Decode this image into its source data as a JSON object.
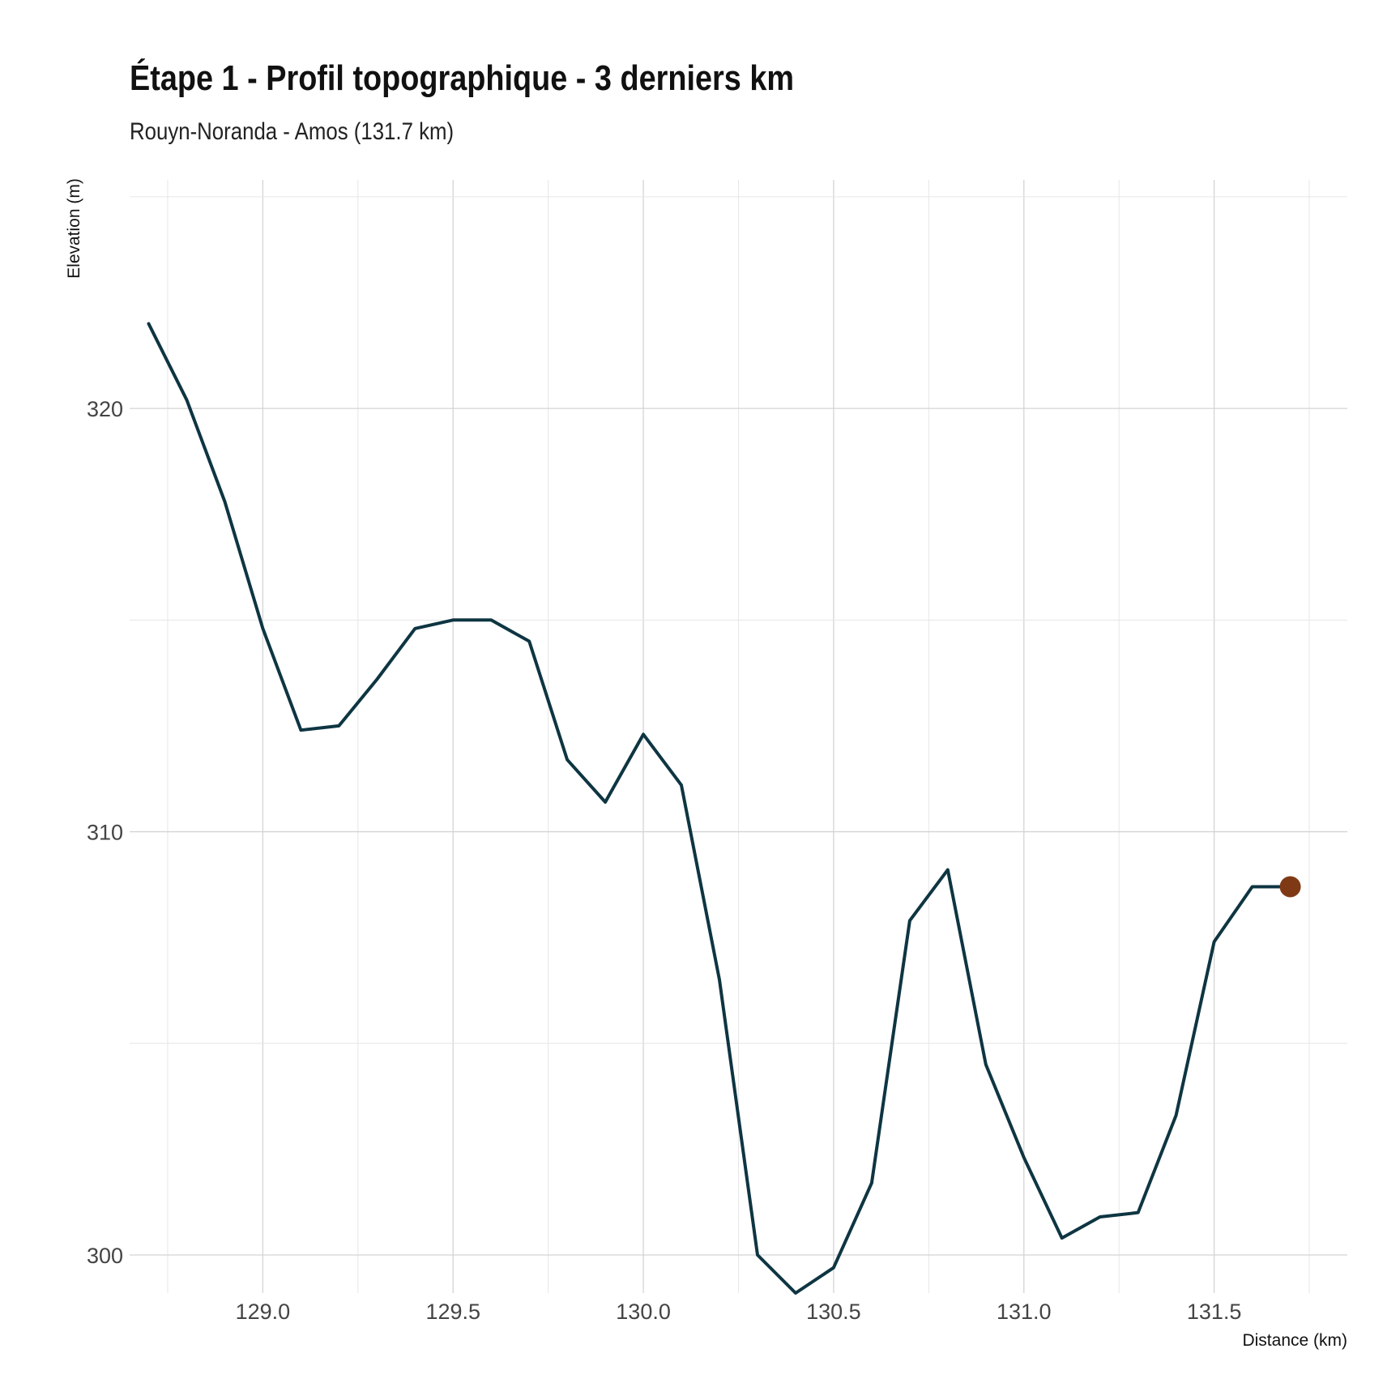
{
  "chart_data": {
    "type": "line",
    "title": "Étape 1 - Profil topographique - 3 derniers km",
    "subtitle": "Rouyn-Noranda - Amos (131.7 km)",
    "xlabel": "Distance (km)",
    "ylabel": "Elevation (m)",
    "xlim": [
      128.65,
      131.85
    ],
    "ylim": [
      299.1,
      325.4
    ],
    "x_ticks": [
      129.0,
      129.5,
      130.0,
      130.5,
      131.0,
      131.5
    ],
    "x_tick_labels": [
      "129.0",
      "129.5",
      "130.0",
      "130.5",
      "131.0",
      "131.5"
    ],
    "y_ticks": [
      300,
      310,
      320
    ],
    "y_tick_labels": [
      "300",
      "310",
      "320"
    ],
    "grid": true,
    "legend": "none",
    "colors": {
      "line": "#0e3542",
      "endpoint": "#7f3a15"
    },
    "series": [
      {
        "x": [
          128.7,
          128.8,
          128.9,
          129.0,
          129.1,
          129.2,
          129.3,
          129.4,
          129.5,
          129.6,
          129.7,
          129.8,
          129.9,
          130.0,
          130.1,
          130.2,
          130.3,
          130.4,
          130.5,
          130.6,
          130.7,
          130.8,
          130.9,
          131.0,
          131.1,
          131.2,
          131.3,
          131.4,
          131.5,
          131.6,
          131.7
        ],
        "y": [
          322.0,
          320.2,
          317.8,
          314.8,
          312.4,
          312.5,
          313.6,
          314.8,
          315.0,
          315.0,
          314.5,
          311.7,
          310.7,
          312.3,
          311.1,
          306.5,
          300.0,
          299.1,
          299.7,
          301.7,
          307.9,
          309.1,
          304.5,
          302.3,
          300.4,
          300.9,
          301.0,
          303.3,
          307.4,
          308.7,
          308.7
        ]
      }
    ],
    "highlight_point": {
      "x": 131.7,
      "y": 308.7
    }
  }
}
